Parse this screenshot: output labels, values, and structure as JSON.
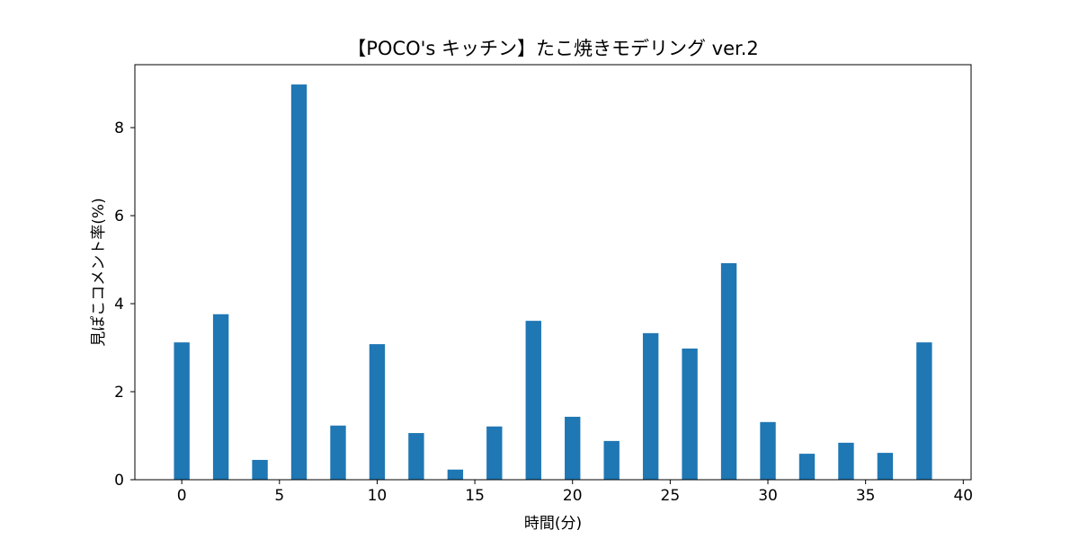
{
  "chart_data": {
    "type": "bar",
    "title": "【POCO's キッチン】たこ焼きモデリング ver.2",
    "xlabel": "時間(分)",
    "ylabel": "見ぽこコメント率(%)",
    "x": [
      0,
      2,
      4,
      6,
      8,
      10,
      12,
      14,
      16,
      18,
      20,
      22,
      24,
      26,
      28,
      30,
      32,
      34,
      36,
      38
    ],
    "values": [
      3.12,
      3.76,
      0.45,
      8.98,
      1.23,
      3.08,
      1.06,
      0.23,
      1.21,
      3.61,
      1.43,
      0.88,
      3.33,
      2.98,
      4.92,
      1.31,
      0.59,
      0.84,
      0.61,
      3.12
    ],
    "bar_width": 0.8,
    "xlim": [
      -2.4,
      40.4
    ],
    "ylim": [
      0,
      9.43
    ],
    "xticks": [
      0,
      5,
      10,
      15,
      20,
      25,
      30,
      35,
      40
    ],
    "yticks": [
      0,
      2,
      4,
      6,
      8
    ],
    "grid": false,
    "color": "#1f77b4"
  }
}
